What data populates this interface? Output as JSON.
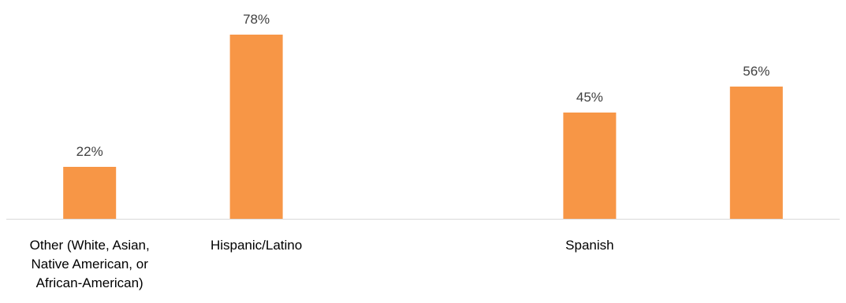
{
  "chart_data": {
    "type": "bar",
    "categories": [
      [
        "Other (White, Asian,",
        "Native American, or",
        "African-American)"
      ],
      [
        "Hispanic/Latino"
      ],
      [],
      [
        "Spanish"
      ],
      []
    ],
    "values": [
      22,
      78,
      null,
      45,
      56
    ],
    "value_labels": [
      "22%",
      "78%",
      "",
      "45%",
      "56%"
    ],
    "ylim": [
      0,
      100
    ],
    "grid": false,
    "legend": "none",
    "bar_color": "#F79646",
    "axis_color": "#D9D9D9"
  }
}
